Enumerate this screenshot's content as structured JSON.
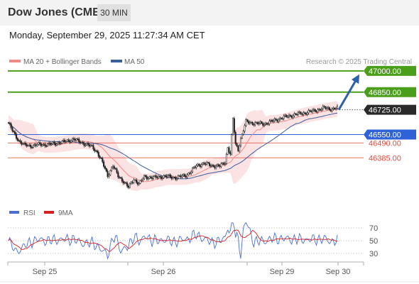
{
  "header": {
    "title": "Dow Jones (CME)",
    "timeframe": "30 MIN",
    "datetime": "Monday, September 29, 2025 11:27:34 AM CET"
  },
  "chart_data": [
    {
      "type": "candlestick",
      "legend": [
        {
          "label": "MA 20 + Bollinger Bands",
          "color": "#f08a8a"
        },
        {
          "label": "MA 50",
          "color": "#3a5d9c"
        }
      ],
      "credit": "Research © 2025 Trading Central",
      "current_price": "46725.00",
      "levels": [
        {
          "value": 47000,
          "label": "47000.00",
          "role": "target",
          "color": "#4a9e1a"
        },
        {
          "value": 46850,
          "label": "46850.00",
          "role": "target",
          "color": "#4a9e1a"
        },
        {
          "value": 46550,
          "label": "46550.00",
          "role": "pivot",
          "color": "#2f62d6"
        },
        {
          "value": 46490,
          "label": "46490.00",
          "role": "support",
          "color": "#e05040"
        },
        {
          "value": 46385,
          "label": "46385.00",
          "role": "support",
          "color": "#e05040"
        }
      ],
      "ylim": [
        46070,
        47100
      ],
      "x_ticks": [
        "Sep 25",
        "Sep 26",
        "Sep 29",
        "Sep 30"
      ],
      "grid": false,
      "legend_position": "top-left"
    },
    {
      "type": "line",
      "legend": [
        {
          "label": "RSI",
          "color": "#4a6fd0"
        },
        {
          "label": "9MA",
          "color": "#d42020"
        }
      ],
      "ylim": [
        20,
        80
      ],
      "y_ticks": [
        70,
        50,
        30
      ],
      "grid": true,
      "legend_position": "top-left"
    }
  ]
}
